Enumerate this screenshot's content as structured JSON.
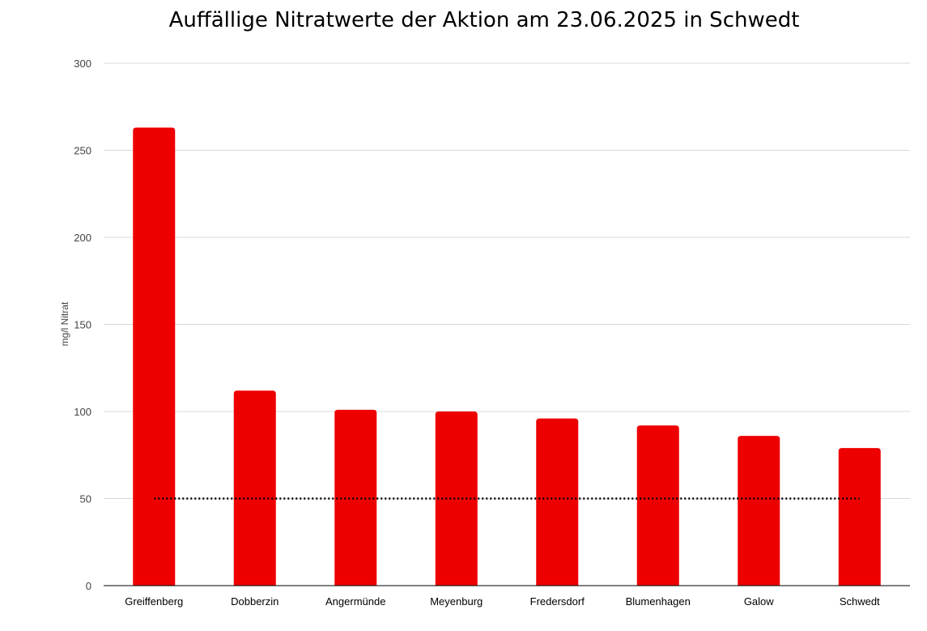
{
  "chart_data": {
    "type": "bar",
    "title": "Auffällige Nitratwerte der Aktion am 23.06.2025 in Schwedt",
    "xlabel": "",
    "ylabel": "mg/l Nitrat",
    "ylim": [
      0,
      300
    ],
    "yticks": [
      0,
      50,
      100,
      150,
      200,
      250,
      300
    ],
    "grid": true,
    "categories": [
      "Greiffenberg",
      "Dobberzin",
      "Angermünde",
      "Meyenburg",
      "Fredersdorf",
      "Blumenhagen",
      "Galow",
      "Schwedt"
    ],
    "values": [
      263,
      112,
      101,
      100,
      96,
      92,
      86,
      79
    ],
    "bar_color": "#ee0000",
    "reference_line": {
      "value": 50,
      "style": "dotted",
      "color": "#000000"
    }
  }
}
